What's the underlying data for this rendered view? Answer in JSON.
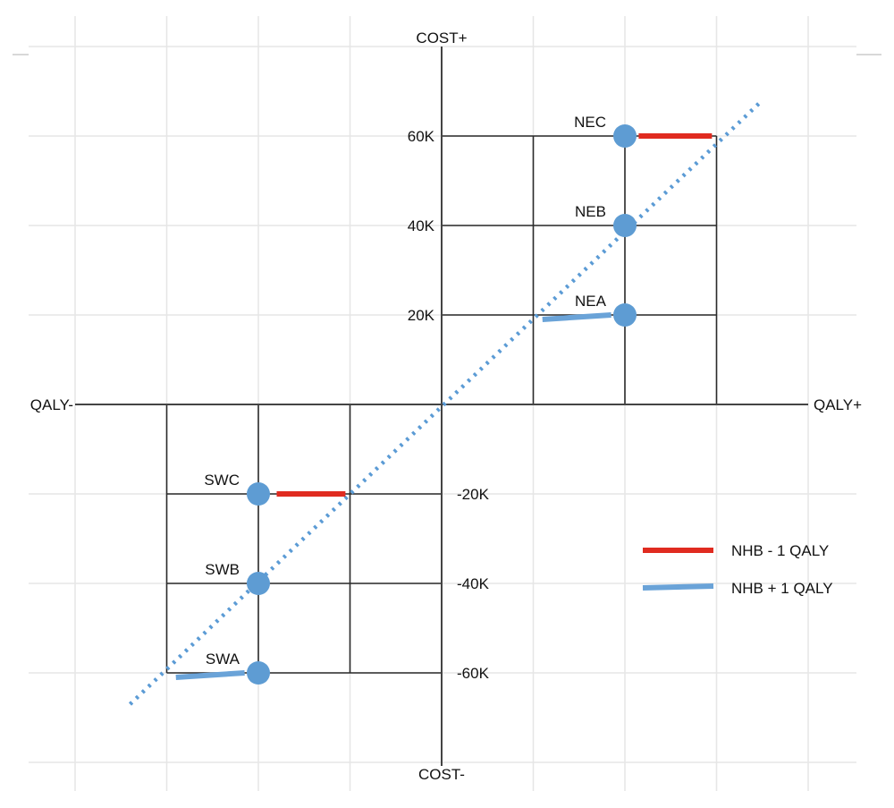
{
  "chart_data": {
    "type": "scatter",
    "title": "",
    "x_axis": {
      "neg_label": "QALY-",
      "pos_label": "QALY+",
      "xlim": [
        -4,
        4
      ]
    },
    "y_axis": {
      "pos_label": "COST+",
      "neg_label": "COST-",
      "ylim": [
        -80000,
        80000
      ],
      "ticks": [
        {
          "value": 60000,
          "label": "60K"
        },
        {
          "value": 40000,
          "label": "40K"
        },
        {
          "value": 20000,
          "label": "20K"
        },
        {
          "value": -20000,
          "label": "-20K"
        },
        {
          "value": -40000,
          "label": "-40K"
        },
        {
          "value": -60000,
          "label": "-60K"
        }
      ]
    },
    "points": [
      {
        "label": "NEC",
        "x": 2,
        "y": 60000
      },
      {
        "label": "NEB",
        "x": 2,
        "y": 40000
      },
      {
        "label": "NEA",
        "x": 2,
        "y": 20000
      },
      {
        "label": "SWC",
        "x": -2,
        "y": -20000
      },
      {
        "label": "SWB",
        "x": -2,
        "y": -40000
      },
      {
        "label": "SWA",
        "x": -2,
        "y": -60000
      }
    ],
    "threshold_line": {
      "style": "dotted",
      "color": "#5b9bd5",
      "from": [
        -3.4,
        -67000
      ],
      "to": [
        3.5,
        68000
      ]
    },
    "nhb_segments": [
      {
        "series": "NHB - 1 QALY",
        "from": [
          2.15,
          60000
        ],
        "to": [
          2.95,
          60000
        ]
      },
      {
        "series": "NHB + 1 QALY",
        "from": [
          1.85,
          20000
        ],
        "to": [
          1.1,
          19000
        ]
      },
      {
        "series": "NHB - 1 QALY",
        "from": [
          -1.8,
          -20000
        ],
        "to": [
          -1.05,
          -20000
        ]
      },
      {
        "series": "NHB + 1 QALY",
        "from": [
          -2.15,
          -60000
        ],
        "to": [
          -2.9,
          -61000
        ]
      }
    ],
    "grid": true,
    "legend": {
      "position": "right",
      "entries": [
        {
          "name": "NHB - 1 QALY",
          "color": "#e02b20"
        },
        {
          "name": "NHB + 1 QALY",
          "color": "#6aa3d8"
        }
      ]
    }
  }
}
